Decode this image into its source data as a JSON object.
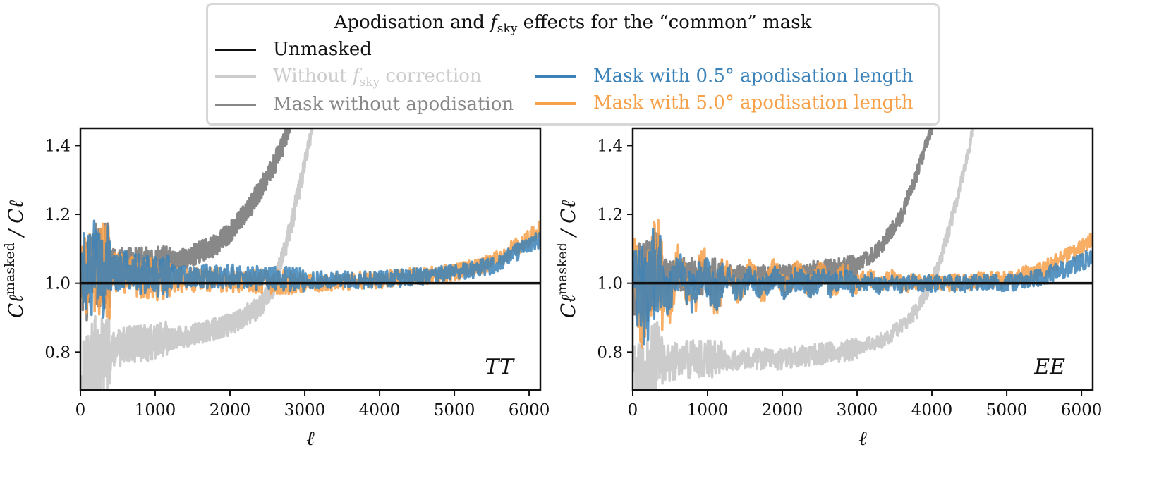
{
  "legend": {
    "title": "Apodisation and f_sky effects for the “common” mask",
    "entries": [
      {
        "label": "Unmasked",
        "color": "#111111"
      },
      {
        "label": "Without f_sky correction",
        "color": "#cccccc"
      },
      {
        "label": "Mask without apodisation",
        "color": "#888888"
      },
      {
        "label": "Mask with 0.5° apodisation length",
        "color": "#3b82b8"
      },
      {
        "label": "Mask with 5.0° apodisation length",
        "color": "#f7a04a"
      }
    ]
  },
  "chart_data": [
    {
      "type": "line",
      "panel": "TT",
      "xlabel": "ℓ",
      "ylabel": "Cℓ^masked / Cℓ",
      "xlim": [
        0,
        6150
      ],
      "ylim": [
        0.69,
        1.45
      ],
      "xticks": [
        "0",
        "1000",
        "2000",
        "3000",
        "4000",
        "5000",
        "6000"
      ],
      "yticks": [
        "0.8",
        "1.0",
        "1.2",
        "1.4"
      ],
      "series": [
        {
          "name": "Unmasked",
          "x": [
            0,
            6150
          ],
          "y": [
            1.0,
            1.0
          ]
        },
        {
          "name": "Without f_sky correction",
          "x": [
            20,
            200,
            600,
            1000,
            1500,
            2000,
            2400,
            2600,
            2800,
            3000,
            3100
          ],
          "y": [
            0.7,
            0.78,
            0.82,
            0.83,
            0.85,
            0.88,
            0.93,
            1.0,
            1.15,
            1.35,
            1.45
          ]
        },
        {
          "name": "Mask without apodisation",
          "x": [
            20,
            200,
            600,
            1000,
            1400,
            1800,
            2000,
            2200,
            2400,
            2600,
            2800
          ],
          "y": [
            1.0,
            1.05,
            1.05,
            1.05,
            1.07,
            1.11,
            1.15,
            1.2,
            1.27,
            1.35,
            1.45
          ]
        },
        {
          "name": "Mask with 0.5° apodisation length",
          "x": [
            20,
            300,
            700,
            1000,
            2000,
            3000,
            4000,
            5000,
            5500,
            6000,
            6150
          ],
          "y": [
            1.05,
            1.04,
            1.03,
            1.02,
            1.02,
            1.01,
            1.01,
            1.03,
            1.05,
            1.11,
            1.13
          ]
        },
        {
          "name": "Mask with 5.0° apodisation length",
          "x": [
            20,
            300,
            700,
            1000,
            2000,
            3000,
            4000,
            5000,
            5500,
            6000,
            6150
          ],
          "y": [
            1.05,
            1.04,
            1.02,
            1.01,
            1.01,
            1.0,
            1.01,
            1.03,
            1.06,
            1.13,
            1.16
          ]
        }
      ]
    },
    {
      "type": "line",
      "panel": "EE",
      "xlabel": "ℓ",
      "ylabel": "Cℓ^masked / Cℓ",
      "xlim": [
        0,
        6150
      ],
      "ylim": [
        0.69,
        1.45
      ],
      "xticks": [
        "0",
        "1000",
        "2000",
        "3000",
        "4000",
        "5000",
        "6000"
      ],
      "yticks": [
        "0.8",
        "1.0",
        "1.2",
        "1.4"
      ],
      "series": [
        {
          "name": "Unmasked",
          "x": [
            0,
            6150
          ],
          "y": [
            1.0,
            1.0
          ]
        },
        {
          "name": "Without f_sky correction",
          "x": [
            20,
            300,
            700,
            1000,
            2000,
            3000,
            3400,
            3800,
            4100,
            4400,
            4550
          ],
          "y": [
            0.7,
            0.76,
            0.78,
            0.78,
            0.78,
            0.81,
            0.84,
            0.92,
            1.05,
            1.3,
            1.45
          ]
        },
        {
          "name": "Mask without apodisation",
          "x": [
            20,
            300,
            700,
            1000,
            2000,
            3000,
            3300,
            3600,
            3800,
            4000
          ],
          "y": [
            1.0,
            1.02,
            1.02,
            1.02,
            1.02,
            1.05,
            1.1,
            1.2,
            1.32,
            1.45
          ]
        },
        {
          "name": "Mask with 0.5° apodisation length",
          "x": [
            20,
            300,
            700,
            1000,
            2000,
            3000,
            4000,
            5000,
            5500,
            6000,
            6150
          ],
          "y": [
            1.0,
            1.0,
            1.0,
            1.0,
            1.0,
            1.0,
            1.0,
            1.0,
            1.02,
            1.06,
            1.08
          ]
        },
        {
          "name": "Mask with 5.0° apodisation length",
          "x": [
            20,
            300,
            700,
            1000,
            2000,
            3000,
            4000,
            5000,
            5500,
            6000,
            6150
          ],
          "y": [
            1.0,
            1.0,
            1.0,
            1.0,
            1.01,
            1.01,
            1.0,
            1.01,
            1.04,
            1.1,
            1.14
          ]
        }
      ]
    }
  ]
}
